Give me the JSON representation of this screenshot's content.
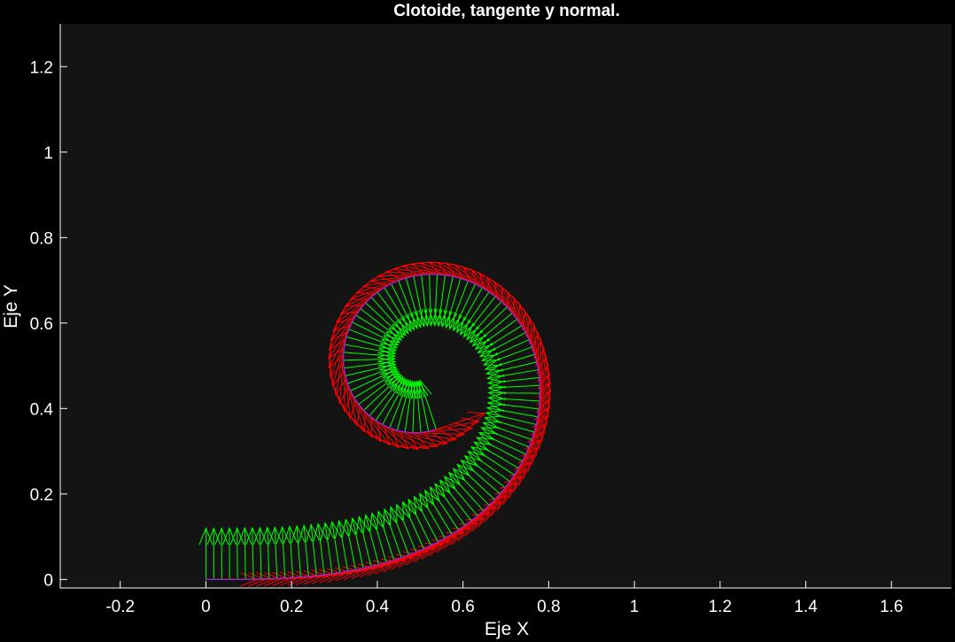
{
  "chart_data": {
    "type": "line",
    "title": "Clotoide, tangente y normal.",
    "xlabel": "Eje X",
    "ylabel": "Eje Y",
    "xlim": [
      -0.34,
      1.74
    ],
    "ylim": [
      -0.02,
      1.3
    ],
    "xticks": [
      "-0.2",
      "0",
      "0.2",
      "0.4",
      "0.6",
      "0.8",
      "1",
      "1.2",
      "1.4",
      "1.6"
    ],
    "yticks": [
      "0",
      "0.2",
      "0.4",
      "0.6",
      "0.8",
      "1",
      "1.2"
    ],
    "grid": false,
    "curve": "clothoid (Fresnel integrals), parameter t from 0 to 2.05",
    "series": [
      {
        "role": "curve",
        "color": "#8a2be2"
      },
      {
        "role": "tangent vectors",
        "color": "#ff0000"
      },
      {
        "role": "normal vectors",
        "color": "#00ff00"
      }
    ],
    "t_max": 2.05,
    "vector_count": 112,
    "vector_length": 0.12
  },
  "colors": {
    "figure_bg": "#000000",
    "axes_bg": "#141414",
    "axis_line": "#ffffff",
    "text": "#ffffff"
  }
}
